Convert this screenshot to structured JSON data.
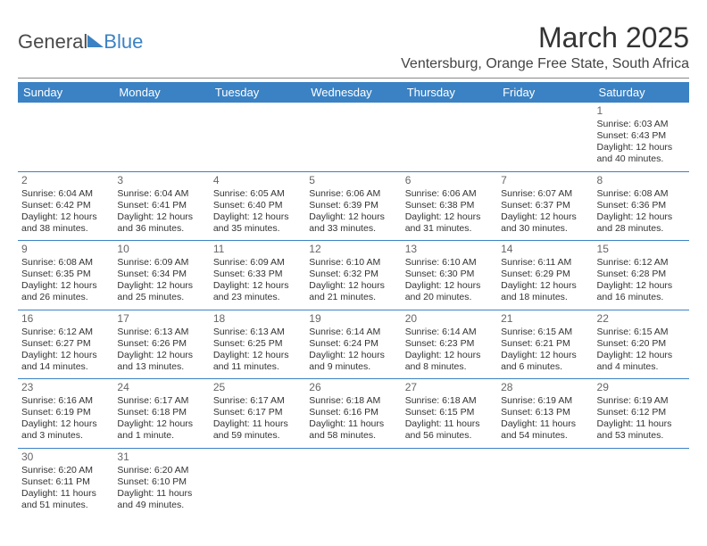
{
  "branding": {
    "general": "General",
    "blue": "Blue"
  },
  "header": {
    "month_title": "March 2025",
    "location": "Ventersburg, Orange Free State, South Africa"
  },
  "styling": {
    "header_bg": "#3b82c4",
    "header_text": "#ffffff",
    "cell_border": "#3b82c4",
    "body_text": "#333333",
    "daynum_color": "#666666",
    "font_family": "Arial",
    "th_fontsize": 13,
    "cell_fontsize": 10.5,
    "title_fontsize": 32,
    "location_fontsize": 16
  },
  "weekdays": [
    "Sunday",
    "Monday",
    "Tuesday",
    "Wednesday",
    "Thursday",
    "Friday",
    "Saturday"
  ],
  "weeks": [
    [
      null,
      null,
      null,
      null,
      null,
      null,
      {
        "d": "1",
        "sr": "Sunrise: 6:03 AM",
        "ss": "Sunset: 6:43 PM",
        "dl1": "Daylight: 12 hours",
        "dl2": "and 40 minutes."
      }
    ],
    [
      {
        "d": "2",
        "sr": "Sunrise: 6:04 AM",
        "ss": "Sunset: 6:42 PM",
        "dl1": "Daylight: 12 hours",
        "dl2": "and 38 minutes."
      },
      {
        "d": "3",
        "sr": "Sunrise: 6:04 AM",
        "ss": "Sunset: 6:41 PM",
        "dl1": "Daylight: 12 hours",
        "dl2": "and 36 minutes."
      },
      {
        "d": "4",
        "sr": "Sunrise: 6:05 AM",
        "ss": "Sunset: 6:40 PM",
        "dl1": "Daylight: 12 hours",
        "dl2": "and 35 minutes."
      },
      {
        "d": "5",
        "sr": "Sunrise: 6:06 AM",
        "ss": "Sunset: 6:39 PM",
        "dl1": "Daylight: 12 hours",
        "dl2": "and 33 minutes."
      },
      {
        "d": "6",
        "sr": "Sunrise: 6:06 AM",
        "ss": "Sunset: 6:38 PM",
        "dl1": "Daylight: 12 hours",
        "dl2": "and 31 minutes."
      },
      {
        "d": "7",
        "sr": "Sunrise: 6:07 AM",
        "ss": "Sunset: 6:37 PM",
        "dl1": "Daylight: 12 hours",
        "dl2": "and 30 minutes."
      },
      {
        "d": "8",
        "sr": "Sunrise: 6:08 AM",
        "ss": "Sunset: 6:36 PM",
        "dl1": "Daylight: 12 hours",
        "dl2": "and 28 minutes."
      }
    ],
    [
      {
        "d": "9",
        "sr": "Sunrise: 6:08 AM",
        "ss": "Sunset: 6:35 PM",
        "dl1": "Daylight: 12 hours",
        "dl2": "and 26 minutes."
      },
      {
        "d": "10",
        "sr": "Sunrise: 6:09 AM",
        "ss": "Sunset: 6:34 PM",
        "dl1": "Daylight: 12 hours",
        "dl2": "and 25 minutes."
      },
      {
        "d": "11",
        "sr": "Sunrise: 6:09 AM",
        "ss": "Sunset: 6:33 PM",
        "dl1": "Daylight: 12 hours",
        "dl2": "and 23 minutes."
      },
      {
        "d": "12",
        "sr": "Sunrise: 6:10 AM",
        "ss": "Sunset: 6:32 PM",
        "dl1": "Daylight: 12 hours",
        "dl2": "and 21 minutes."
      },
      {
        "d": "13",
        "sr": "Sunrise: 6:10 AM",
        "ss": "Sunset: 6:30 PM",
        "dl1": "Daylight: 12 hours",
        "dl2": "and 20 minutes."
      },
      {
        "d": "14",
        "sr": "Sunrise: 6:11 AM",
        "ss": "Sunset: 6:29 PM",
        "dl1": "Daylight: 12 hours",
        "dl2": "and 18 minutes."
      },
      {
        "d": "15",
        "sr": "Sunrise: 6:12 AM",
        "ss": "Sunset: 6:28 PM",
        "dl1": "Daylight: 12 hours",
        "dl2": "and 16 minutes."
      }
    ],
    [
      {
        "d": "16",
        "sr": "Sunrise: 6:12 AM",
        "ss": "Sunset: 6:27 PM",
        "dl1": "Daylight: 12 hours",
        "dl2": "and 14 minutes."
      },
      {
        "d": "17",
        "sr": "Sunrise: 6:13 AM",
        "ss": "Sunset: 6:26 PM",
        "dl1": "Daylight: 12 hours",
        "dl2": "and 13 minutes."
      },
      {
        "d": "18",
        "sr": "Sunrise: 6:13 AM",
        "ss": "Sunset: 6:25 PM",
        "dl1": "Daylight: 12 hours",
        "dl2": "and 11 minutes."
      },
      {
        "d": "19",
        "sr": "Sunrise: 6:14 AM",
        "ss": "Sunset: 6:24 PM",
        "dl1": "Daylight: 12 hours",
        "dl2": "and 9 minutes."
      },
      {
        "d": "20",
        "sr": "Sunrise: 6:14 AM",
        "ss": "Sunset: 6:23 PM",
        "dl1": "Daylight: 12 hours",
        "dl2": "and 8 minutes."
      },
      {
        "d": "21",
        "sr": "Sunrise: 6:15 AM",
        "ss": "Sunset: 6:21 PM",
        "dl1": "Daylight: 12 hours",
        "dl2": "and 6 minutes."
      },
      {
        "d": "22",
        "sr": "Sunrise: 6:15 AM",
        "ss": "Sunset: 6:20 PM",
        "dl1": "Daylight: 12 hours",
        "dl2": "and 4 minutes."
      }
    ],
    [
      {
        "d": "23",
        "sr": "Sunrise: 6:16 AM",
        "ss": "Sunset: 6:19 PM",
        "dl1": "Daylight: 12 hours",
        "dl2": "and 3 minutes."
      },
      {
        "d": "24",
        "sr": "Sunrise: 6:17 AM",
        "ss": "Sunset: 6:18 PM",
        "dl1": "Daylight: 12 hours",
        "dl2": "and 1 minute."
      },
      {
        "d": "25",
        "sr": "Sunrise: 6:17 AM",
        "ss": "Sunset: 6:17 PM",
        "dl1": "Daylight: 11 hours",
        "dl2": "and 59 minutes."
      },
      {
        "d": "26",
        "sr": "Sunrise: 6:18 AM",
        "ss": "Sunset: 6:16 PM",
        "dl1": "Daylight: 11 hours",
        "dl2": "and 58 minutes."
      },
      {
        "d": "27",
        "sr": "Sunrise: 6:18 AM",
        "ss": "Sunset: 6:15 PM",
        "dl1": "Daylight: 11 hours",
        "dl2": "and 56 minutes."
      },
      {
        "d": "28",
        "sr": "Sunrise: 6:19 AM",
        "ss": "Sunset: 6:13 PM",
        "dl1": "Daylight: 11 hours",
        "dl2": "and 54 minutes."
      },
      {
        "d": "29",
        "sr": "Sunrise: 6:19 AM",
        "ss": "Sunset: 6:12 PM",
        "dl1": "Daylight: 11 hours",
        "dl2": "and 53 minutes."
      }
    ],
    [
      {
        "d": "30",
        "sr": "Sunrise: 6:20 AM",
        "ss": "Sunset: 6:11 PM",
        "dl1": "Daylight: 11 hours",
        "dl2": "and 51 minutes."
      },
      {
        "d": "31",
        "sr": "Sunrise: 6:20 AM",
        "ss": "Sunset: 6:10 PM",
        "dl1": "Daylight: 11 hours",
        "dl2": "and 49 minutes."
      },
      null,
      null,
      null,
      null,
      null
    ]
  ]
}
